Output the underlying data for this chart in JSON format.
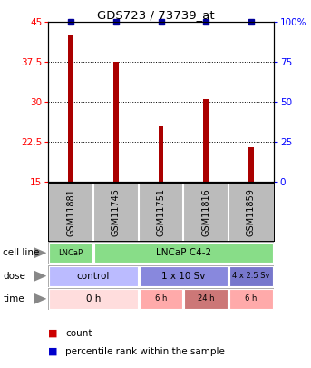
{
  "title": "GDS723 / 73739_at",
  "samples": [
    "GSM11881",
    "GSM11745",
    "GSM11751",
    "GSM11816",
    "GSM11859"
  ],
  "counts": [
    42.5,
    37.5,
    25.5,
    30.5,
    21.5
  ],
  "percentiles": [
    100,
    100,
    100,
    100,
    100
  ],
  "ylim_left": [
    15,
    45
  ],
  "ylim_right": [
    0,
    100
  ],
  "yticks_left": [
    15,
    22.5,
    30,
    37.5,
    45
  ],
  "yticks_right": [
    0,
    25,
    50,
    75,
    100
  ],
  "ytick_labels_left": [
    "15",
    "22.5",
    "30",
    "37.5",
    "45"
  ],
  "ytick_labels_right": [
    "0",
    "25",
    "50",
    "75",
    "100%"
  ],
  "bar_color": "#AA0000",
  "percentile_color": "#000099",
  "cell_line_row": {
    "label": "cell line",
    "segments": [
      {
        "text": "LNCaP",
        "span": [
          0,
          1
        ],
        "color": "#88DD88"
      },
      {
        "text": "LNCaP C4-2",
        "span": [
          1,
          5
        ],
        "color": "#88DD88"
      }
    ]
  },
  "dose_row": {
    "label": "dose",
    "segments": [
      {
        "text": "control",
        "span": [
          0,
          2
        ],
        "color": "#BBBBFF"
      },
      {
        "text": "1 x 10 Sv",
        "span": [
          2,
          4
        ],
        "color": "#8888DD"
      },
      {
        "text": "4 x 2.5 Sv",
        "span": [
          4,
          5
        ],
        "color": "#7777CC"
      }
    ]
  },
  "time_row": {
    "label": "time",
    "segments": [
      {
        "text": "0 h",
        "span": [
          0,
          2
        ],
        "color": "#FFDDDD"
      },
      {
        "text": "6 h",
        "span": [
          2,
          3
        ],
        "color": "#FFAAAA"
      },
      {
        "text": "24 h",
        "span": [
          3,
          4
        ],
        "color": "#CC7777"
      },
      {
        "text": "6 h",
        "span": [
          4,
          5
        ],
        "color": "#FFAAAA"
      }
    ]
  },
  "sample_bg_color": "#BBBBBB",
  "legend_count_color": "#CC0000",
  "legend_percentile_color": "#0000CC",
  "background_color": "#FFFFFF",
  "bar_width": 0.12,
  "grid_yticks": [
    22.5,
    30.0,
    37.5
  ]
}
